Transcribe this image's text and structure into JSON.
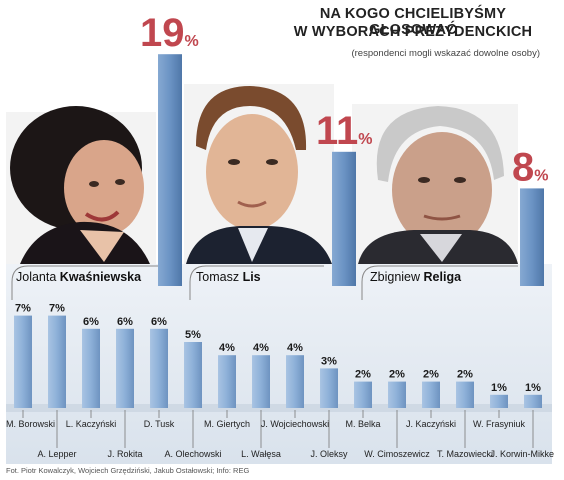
{
  "title_line1": "NA KOGO CHCIELIBYŚMY GŁOSOWAĆ",
  "title_line2": "W WYBORACH PREZYDENCKICH",
  "subtitle": "(respondenci mogli wskazać dowolne osoby)",
  "footer": "Fot. Piotr Kowalczyk, Wojciech Grzędziński, Jakub Ostałowski; Info: REG",
  "featured": [
    {
      "first": "Jolanta",
      "last": "Kwaśniewska",
      "pct": "19",
      "sign": "%",
      "photo_icon": "portrait-woman-icon"
    },
    {
      "first": "Tomasz",
      "last": "Lis",
      "pct": "11",
      "sign": "%",
      "photo_icon": "portrait-man-icon"
    },
    {
      "first": "Zbigniew",
      "last": "Religa",
      "pct": "8",
      "sign": "%",
      "photo_icon": "portrait-older-man-icon"
    }
  ],
  "chart_data": {
    "type": "bar",
    "title": "NA KOGO CHCIELIBYŚMY GŁOSOWAĆ W WYBORACH PREZYDENCKICH",
    "subtitle": "(respondenci mogli wskazać dowolne osoby)",
    "unit": "%",
    "featured_values": [
      19,
      11,
      8
    ],
    "categories": [
      "M. Borowski",
      "A. Lepper",
      "L. Kaczyński",
      "J. Rokita",
      "D. Tusk",
      "A. Olechowski",
      "M. Giertych",
      "L. Wałęsa",
      "J. Wojciechowski",
      "J. Oleksy",
      "M. Belka",
      "W. Cimoszewicz",
      "J. Kaczyński",
      "T. Mazowiecki",
      "W. Frasyniuk",
      "J. Korwin-Mikke"
    ],
    "values": [
      7,
      7,
      6,
      6,
      6,
      5,
      4,
      4,
      4,
      3,
      2,
      2,
      2,
      2,
      1,
      1
    ],
    "labels": [
      "7%",
      "7%",
      "6%",
      "6%",
      "6%",
      "5%",
      "4%",
      "4%",
      "4%",
      "3%",
      "2%",
      "2%",
      "2%",
      "2%",
      "1%",
      "1%"
    ],
    "bar_color": "#8aaed6",
    "big_bar_color": "#6b93c4",
    "panel_color": "#e5ecf3",
    "number_color": "#c0474f"
  }
}
